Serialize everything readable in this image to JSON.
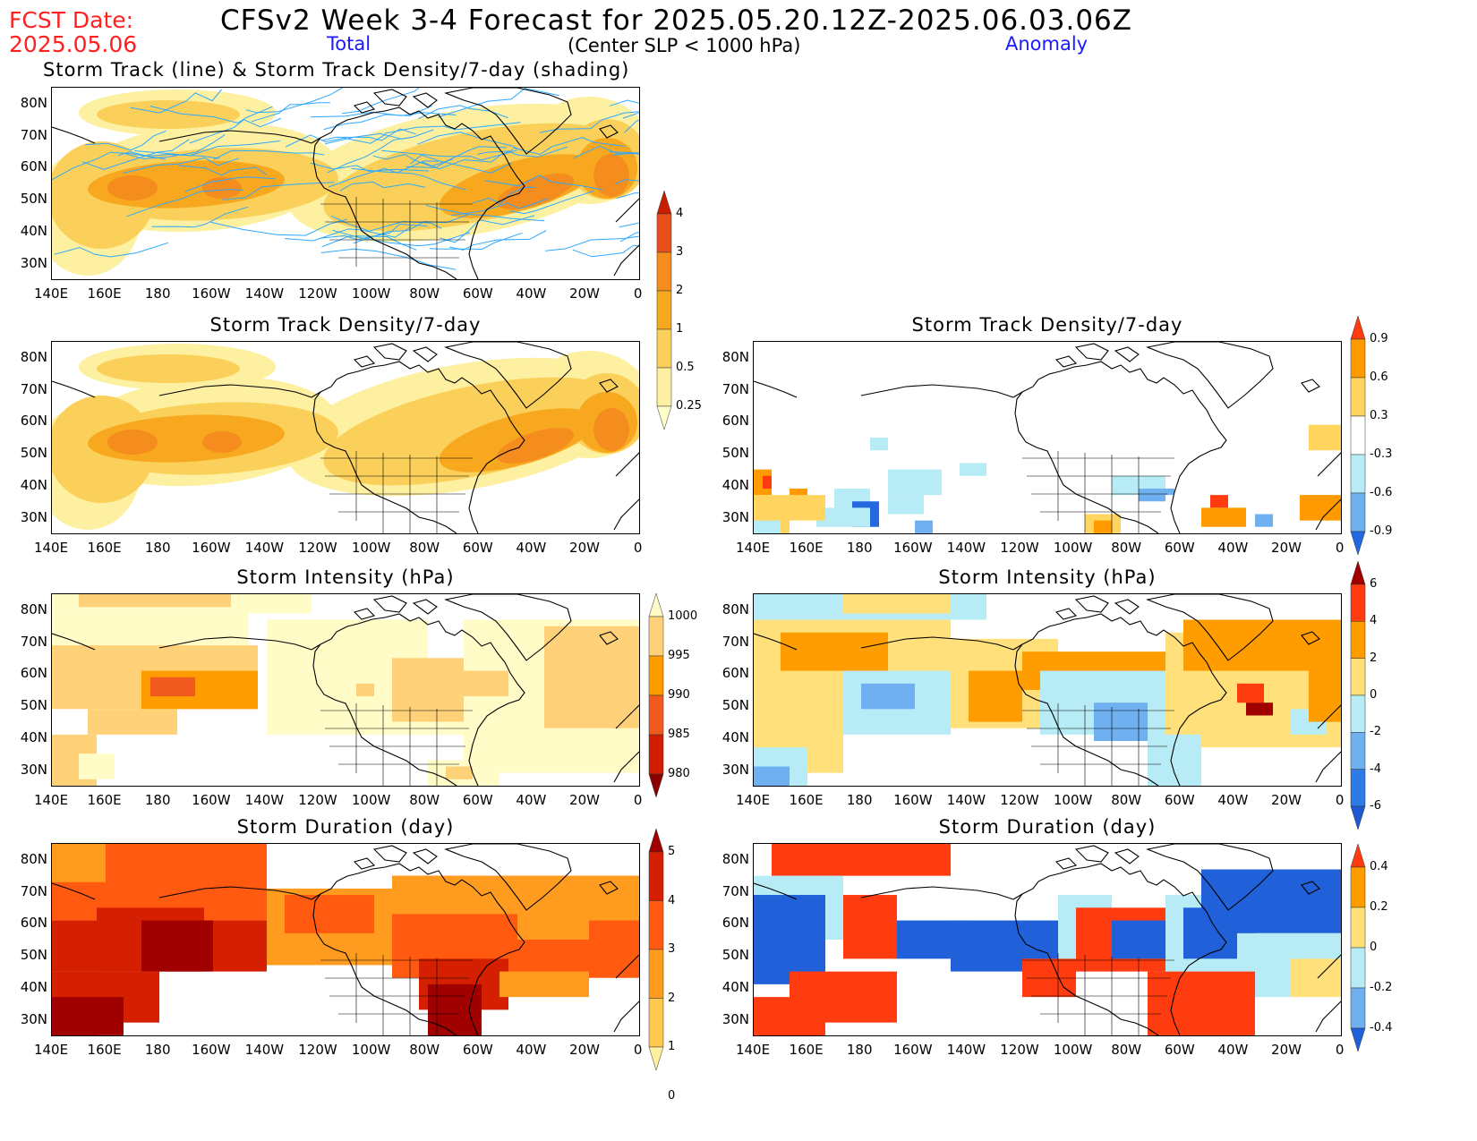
{
  "header": {
    "fcst_label": "FCST Date:",
    "fcst_date": "2025.05.06",
    "title": "CFSv2 Week 3-4 Forecast for 2025.05.20.12Z-2025.06.03.06Z",
    "total_label": "Total",
    "criterion": "(Center SLP < 1000 hPa)",
    "anomaly_label": "Anomaly",
    "row1_title": "Storm Track (line) & Storm Track Density/7-day (shading)"
  },
  "lat_labels": [
    "80N",
    "70N",
    "60N",
    "50N",
    "40N",
    "30N"
  ],
  "lon_labels": [
    "140E",
    "160E",
    "180",
    "160W",
    "140W",
    "120W",
    "100W",
    "80W",
    "60W",
    "40W",
    "20W",
    "0"
  ],
  "panels": {
    "total_density": {
      "title": "Storm Track Density/7-day"
    },
    "anom_density": {
      "title": "Storm Track Density/7-day"
    },
    "total_intensity": {
      "title": "Storm Intensity (hPa)"
    },
    "anom_intensity": {
      "title": "Storm Intensity (hPa)"
    },
    "total_duration": {
      "title": "Storm Duration (day)"
    },
    "anom_duration": {
      "title": "Storm Duration (day)"
    }
  },
  "colorbars": {
    "density_total": {
      "labels": [
        "4",
        "3",
        "2",
        "1",
        "0.5",
        "0.25"
      ],
      "colors": [
        "#c81e00",
        "#e8501a",
        "#f58c1e",
        "#f8a81e",
        "#fbd05a",
        "#fdf0a0",
        "#ffffcc"
      ]
    },
    "density_anom": {
      "labels": [
        "0.9",
        "0.6",
        "0.3",
        "-0.3",
        "-0.6",
        "-0.9"
      ],
      "colors": [
        "#ff3b10",
        "#ff9a00",
        "#ffd560",
        "#ffffff",
        "#b7ecf6",
        "#6fb0f0",
        "#2468e0"
      ]
    },
    "intensity_total": {
      "labels": [
        "1000",
        "995",
        "990",
        "985",
        "980"
      ],
      "colors": [
        "#fffcc8",
        "#ffd27a",
        "#ff9c00",
        "#f05a1e",
        "#d21e00",
        "#8c0000"
      ]
    },
    "intensity_anom": {
      "labels": [
        "6",
        "4",
        "2",
        "0",
        "-2",
        "-4",
        "-6"
      ],
      "colors": [
        "#a00000",
        "#ff3b10",
        "#ff9c00",
        "#ffe07a",
        "#b7ecf6",
        "#6fb0f0",
        "#2e7ae6",
        "#1f58d0"
      ]
    },
    "duration_total": {
      "labels": [
        "5",
        "4",
        "3",
        "2",
        "1",
        "0"
      ],
      "colors": [
        "#a00000",
        "#d42000",
        "#ff5a10",
        "#ff9c20",
        "#ffc850",
        "#fff0a0"
      ]
    },
    "duration_anom": {
      "labels": [
        "0.4",
        "0.2",
        "0",
        "-0.2",
        "-0.4"
      ],
      "colors": [
        "#ff3b10",
        "#ff9c00",
        "#ffe07a",
        "#b7ecf6",
        "#6fb0f0",
        "#2060d8"
      ]
    }
  },
  "colors": {
    "storm_track_line": "#2ea8ff",
    "coastline": "#000000"
  }
}
